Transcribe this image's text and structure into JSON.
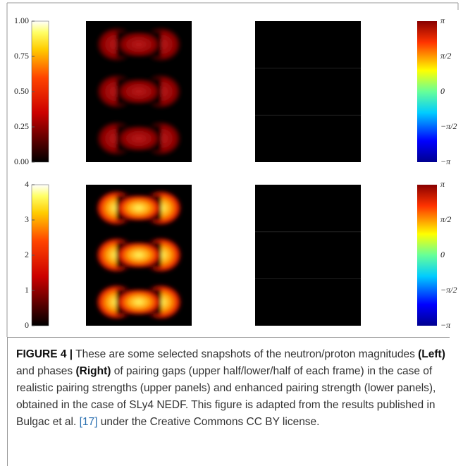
{
  "figure": {
    "top": {
      "magnitude_ticks": [
        "1.00",
        "0.75",
        "0.50",
        "0.25",
        "0.00"
      ],
      "phase_ticks": [
        "π",
        "π/2",
        "0",
        "−π/2",
        "−π"
      ]
    },
    "bottom": {
      "magnitude_ticks": [
        "4",
        "3",
        "2",
        "1",
        "0"
      ],
      "phase_ticks": [
        "π",
        "π/2",
        "0",
        "−π/2",
        "−π"
      ]
    }
  },
  "caption": {
    "label": "FIGURE 4 |",
    "text_1": " These are some selected snapshots of the neutron/proton magnitudes ",
    "left": "(Left)",
    "text_2": " and phases ",
    "right": "(Right)",
    "text_3": " of pairing gaps (upper half/lower/half of each frame) in the case of realistic pairing strengths (upper panels) and enhanced pairing strength (lower panels), obtained in the case of SLy4 NEDF. This figure is adapted from the results published in Bulgac et al. ",
    "ref": "[17]",
    "text_4": " under the Creative Commons CC BY license."
  }
}
